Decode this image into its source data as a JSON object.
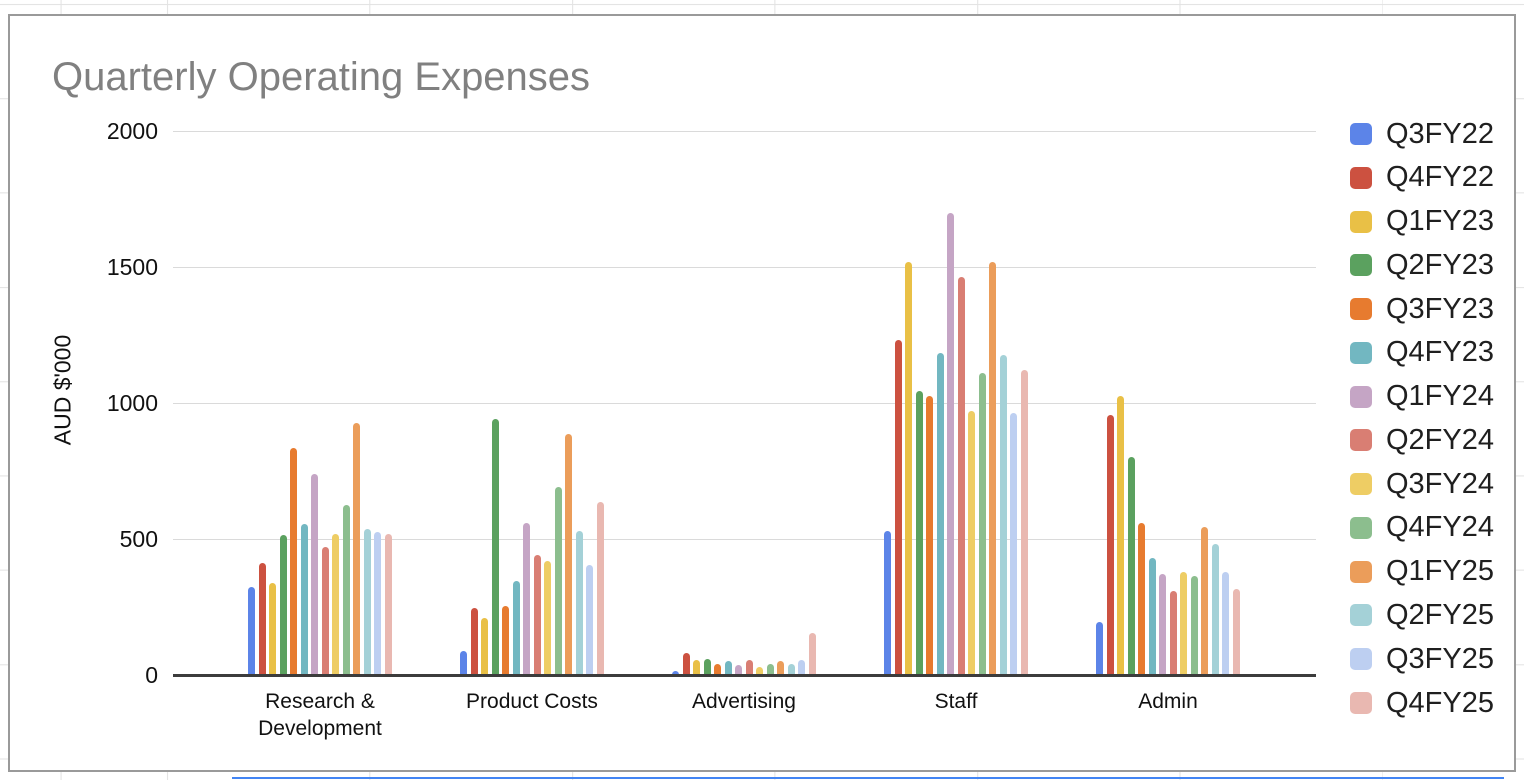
{
  "chart_data": {
    "type": "bar",
    "title": "Quarterly Operating Expenses",
    "xlabel": "",
    "ylabel": "AUD $'000",
    "ylim": [
      0,
      2000
    ],
    "yticks": [
      0,
      500,
      1000,
      1500,
      2000
    ],
    "grid": "horizontal",
    "legend_position": "right",
    "categories": [
      "Research & Development",
      "Product Costs",
      "Advertising",
      "Staff",
      "Admin"
    ],
    "series": [
      {
        "name": "Q3FY22",
        "color": "#5C84E8",
        "values": [
          325,
          90,
          15,
          530,
          195
        ]
      },
      {
        "name": "Q4FY22",
        "color": "#CC5140",
        "values": [
          410,
          245,
          80,
          1230,
          955
        ]
      },
      {
        "name": "Q1FY23",
        "color": "#E9C046",
        "values": [
          340,
          210,
          55,
          1520,
          1025
        ]
      },
      {
        "name": "Q2FY23",
        "color": "#5BA15F",
        "values": [
          515,
          940,
          60,
          1045,
          800
        ]
      },
      {
        "name": "Q3FY23",
        "color": "#E77B2F",
        "values": [
          835,
          255,
          40,
          1025,
          560
        ]
      },
      {
        "name": "Q4FY23",
        "color": "#72B7C1",
        "values": [
          555,
          345,
          50,
          1185,
          430
        ]
      },
      {
        "name": "Q1FY24",
        "color": "#C5A5C5",
        "values": [
          740,
          560,
          35,
          1700,
          370
        ]
      },
      {
        "name": "Q2FY24",
        "color": "#D97E73",
        "values": [
          470,
          440,
          55,
          1465,
          310
        ]
      },
      {
        "name": "Q3FY24",
        "color": "#EECD64",
        "values": [
          520,
          420,
          30,
          970,
          380
        ]
      },
      {
        "name": "Q4FY24",
        "color": "#8CBE8E",
        "values": [
          625,
          690,
          40,
          1110,
          365
        ]
      },
      {
        "name": "Q1FY25",
        "color": "#EB9D5A",
        "values": [
          925,
          885,
          50,
          1520,
          545
        ]
      },
      {
        "name": "Q2FY25",
        "color": "#A4D1D7",
        "values": [
          535,
          530,
          40,
          1175,
          480
        ]
      },
      {
        "name": "Q3FY25",
        "color": "#BDCFF1",
        "values": [
          525,
          405,
          55,
          965,
          380
        ]
      },
      {
        "name": "Q4FY25",
        "color": "#E9B8B1",
        "values": [
          520,
          635,
          155,
          1120,
          315
        ]
      }
    ]
  },
  "colors": {
    "title_text": "#808080",
    "gridline": "#DADADA",
    "axis_line": "#3C3C3C",
    "selection_line": "#4285F4"
  }
}
